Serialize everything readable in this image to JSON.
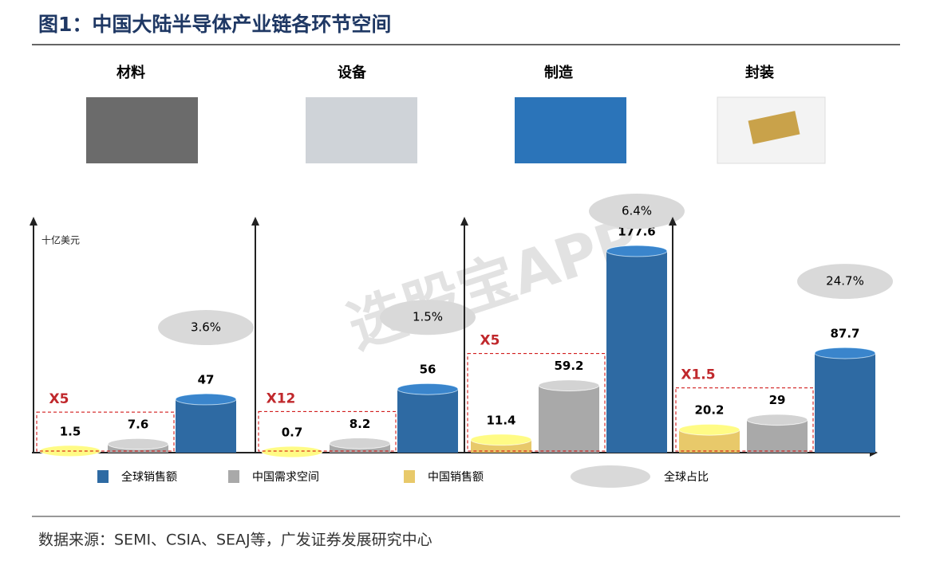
{
  "chart_data": {
    "type": "cylinder",
    "title": "图1：中国大陆半导体产业链各环节空间",
    "unit": "十亿美元",
    "categories": [
      "材料",
      "设备",
      "制造",
      "封装"
    ],
    "series": [
      {
        "name": "中国销售额",
        "color": "#e8c96a",
        "values": [
          1.5,
          0.7,
          11.4,
          20.2
        ]
      },
      {
        "name": "中国需求空间",
        "color": "#a9a9a9",
        "values": [
          7.6,
          8.2,
          59.2,
          29
        ]
      },
      {
        "name": "全球销售额",
        "color": "#2e6aa3",
        "values": [
          47,
          56,
          177.6,
          87.7
        ]
      }
    ],
    "share": {
      "name": "全球占比",
      "color": "#d9d9d9",
      "values": [
        3.6,
        1.5,
        6.4,
        24.7
      ],
      "value_labels": [
        "3.6%",
        "1.5%",
        "6.4%",
        "24.7%"
      ]
    },
    "multipliers": [
      "X5",
      "X12",
      "X5",
      "X1.5"
    ],
    "watermark": "选股宝APP",
    "source": "数据来源：SEMI、CSIA、SEAJ等，广发证券发展研究中心"
  }
}
